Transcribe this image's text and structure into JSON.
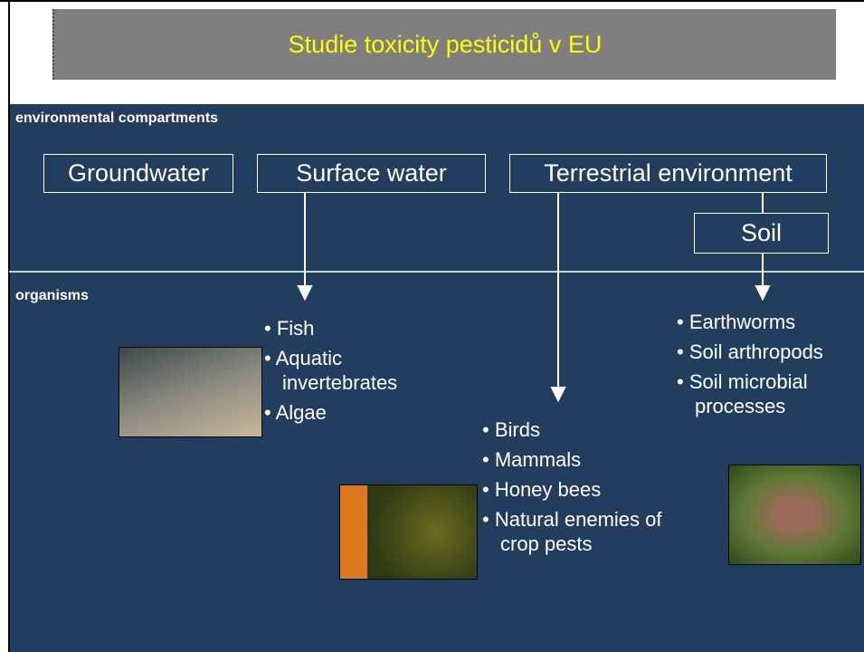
{
  "header": {
    "title": "Studie toxicity pesticidů v EU"
  },
  "labels": {
    "compartments": "environmental compartments",
    "organisms": "organisms"
  },
  "compartments": [
    "Groundwater",
    "Surface water",
    "Terrestrial environment",
    "Soil"
  ],
  "organism_groups": [
    {
      "items": [
        "Fish",
        "Aquatic invertebrates",
        "Algae"
      ]
    },
    {
      "items": [
        "Birds",
        "Mammals",
        "Honey bees",
        "Natural enemies of crop pests"
      ]
    },
    {
      "items": [
        "Earthworms",
        "Soil arthropods",
        "Soil microbial processes"
      ]
    }
  ]
}
